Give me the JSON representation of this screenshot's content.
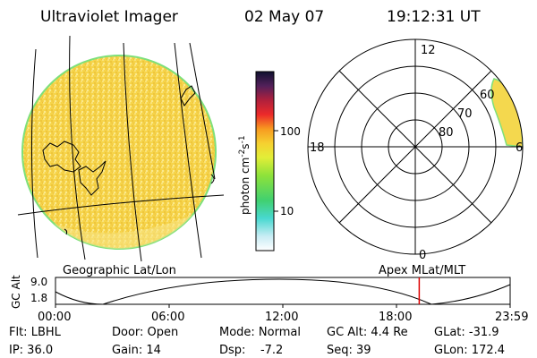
{
  "header": {
    "instrument": "Ultraviolet Imager",
    "date": "02 May 07",
    "time": "19:12:31 UT"
  },
  "colorbar": {
    "unit_label": "photon cm",
    "unit_exp1": "-2",
    "unit_mid": "s",
    "unit_exp2": "-1",
    "tick_100": "100",
    "tick_10": "10"
  },
  "polar": {
    "label_12": "12",
    "label_18": "18",
    "label_6": "6",
    "label_0": "0",
    "lat_60": "60",
    "lat_70": "70",
    "lat_80": "80"
  },
  "panel_labels": {
    "geo": "Geographic Lat/Lon",
    "apex": "Apex  MLat/MLT"
  },
  "timeline": {
    "ylabel": "GC Alt",
    "y_top": "9.0",
    "y_bottom": "1.8",
    "ticks": [
      "00:00",
      "06:00",
      "12:00",
      "18:00",
      "23:59"
    ],
    "current_time_fraction": 0.8
  },
  "footer": {
    "flt": "Flt: LBHL",
    "ip": "IP: 36.0",
    "door": "Door: Open",
    "gain": "Gain: 14",
    "mode": "Mode: Normal",
    "dsp": "Dsp:    -7.2",
    "gcalt": "GC Alt: 4.4 Re",
    "seq": "Seq: 39",
    "glat": "GLat: -31.9",
    "glon": "GLon: 172.4"
  },
  "colors": {
    "disk_fill": "#f6d64a",
    "disk_edge": "#7ee07a",
    "auroral_fill": "#f4d84e",
    "marker": "#dd0000"
  }
}
